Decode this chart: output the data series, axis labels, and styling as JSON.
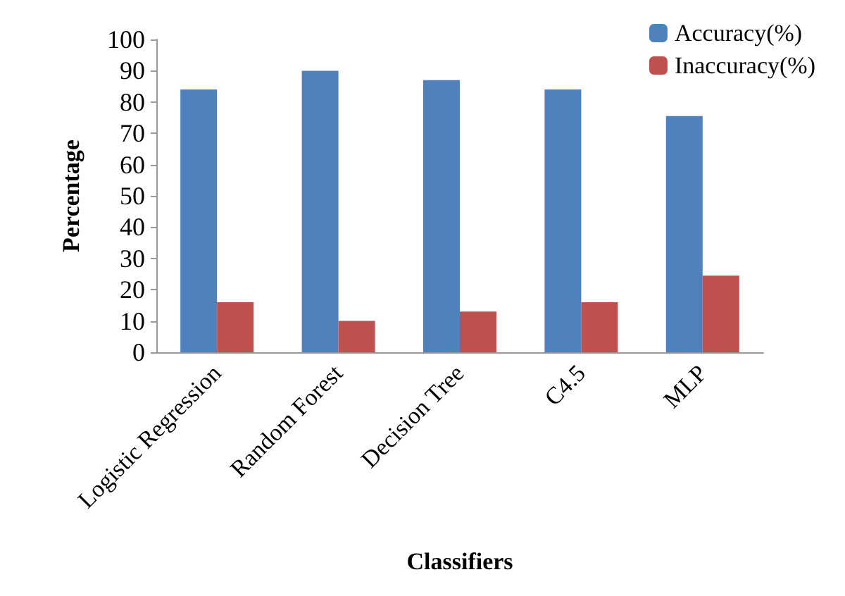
{
  "chart_data": {
    "type": "bar",
    "xlabel": "Classifiers",
    "ylabel": "Percentage",
    "categories": [
      "Logistic Regression",
      "Random Forest",
      "Decision Tree",
      "C4.5",
      "MLP"
    ],
    "series": [
      {
        "name": "Accuracy(%)",
        "color": "#4f81bd",
        "values": [
          84,
          90,
          87,
          84,
          75.5
        ]
      },
      {
        "name": "Inaccuracy(%)",
        "color": "#c0504d",
        "values": [
          16,
          10,
          13,
          16,
          24.5
        ]
      }
    ],
    "ylim": [
      0,
      100
    ],
    "yticks": [
      0,
      10,
      20,
      30,
      40,
      50,
      60,
      70,
      80,
      90,
      100
    ],
    "grid": false,
    "legend": "top right"
  }
}
